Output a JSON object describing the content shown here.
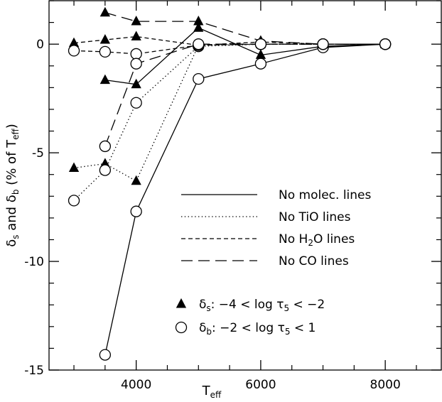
{
  "chart_data": {
    "type": "line",
    "xlabel": "T",
    "xlabel_sub": "eff",
    "ylabel_parts": [
      "δ",
      "s",
      " and δ",
      "b",
      " (% of T",
      "eff",
      ")"
    ],
    "xlim": [
      2600,
      8900
    ],
    "ylim": [
      -15,
      2
    ],
    "x_ticks": [
      4000,
      6000,
      8000
    ],
    "x_tick_labels": [
      "4000",
      "6000",
      "8000"
    ],
    "y_ticks": [
      0,
      -5,
      -10,
      -15
    ],
    "y_tick_labels": [
      "0",
      "-5",
      "-10",
      "-15"
    ],
    "x_minor_step": 500,
    "y_minor_step": 1,
    "grid": false,
    "legend_placement": "lower-right",
    "line_styles": [
      {
        "name": "No molec. lines",
        "dash": "solid"
      },
      {
        "name": "No TiO lines",
        "dash": "dotted"
      },
      {
        "name": "No H2O lines",
        "dash": "short-dashed"
      },
      {
        "name": "No CO lines",
        "dash": "long-dashed"
      }
    ],
    "line_legend_labels": [
      {
        "text": "No molec. lines",
        "sub": "",
        "tail": ""
      },
      {
        "text": "No TiO lines",
        "sub": "",
        "tail": ""
      },
      {
        "text": "No H",
        "sub": "2",
        "tail": "O lines"
      },
      {
        "text": "No CO lines",
        "sub": "",
        "tail": ""
      }
    ],
    "marker_legend": [
      {
        "marker": "filled-triangle",
        "sym": "δ",
        "sub": "s",
        "rest": ": −4 < log τ",
        "sub2": "5",
        "rest2": " < −2"
      },
      {
        "marker": "open-circle",
        "sym": "δ",
        "sub": "b",
        "rest": ": −2 < log τ",
        "sub2": "5",
        "rest2": " < 1"
      }
    ],
    "series": [
      {
        "line": "solid",
        "marker": "triangle",
        "x": [
          3500,
          4000,
          5000,
          6000,
          7000,
          8000
        ],
        "y": [
          -1.65,
          -1.85,
          0.75,
          -0.5,
          -0.1,
          0
        ]
      },
      {
        "line": "solid",
        "marker": "circle",
        "x": [
          3500,
          4000,
          5000,
          6000,
          7000,
          8000
        ],
        "y": [
          -14.3,
          -7.7,
          -1.6,
          -0.9,
          -0.15,
          0
        ]
      },
      {
        "line": "dotted",
        "marker": "triangle",
        "x": [
          3000,
          3500,
          4000,
          5000,
          6000,
          7000,
          8000
        ],
        "y": [
          -5.7,
          -5.5,
          -6.3,
          -0.05,
          0,
          0,
          0
        ]
      },
      {
        "line": "dotted",
        "marker": "circle",
        "x": [
          3000,
          3500,
          4000,
          5000,
          6000,
          7000,
          8000
        ],
        "y": [
          -7.2,
          -5.8,
          -2.7,
          -0.1,
          0,
          0,
          0
        ]
      },
      {
        "line": "short-dashed",
        "marker": "triangle",
        "x": [
          3000,
          3500,
          4000,
          5000,
          6000,
          7000,
          8000
        ],
        "y": [
          0.05,
          0.2,
          0.35,
          -0.05,
          0.1,
          0,
          0
        ]
      },
      {
        "line": "short-dashed",
        "marker": "circle",
        "x": [
          3000,
          3500,
          4000,
          5000,
          6000,
          7000,
          8000
        ],
        "y": [
          -0.3,
          -0.35,
          -0.45,
          -0.05,
          0,
          0,
          0
        ]
      },
      {
        "line": "long-dashed",
        "marker": "triangle",
        "x": [
          3500,
          4000,
          5000,
          6000,
          7000,
          8000
        ],
        "y": [
          1.45,
          1.05,
          1.05,
          0.15,
          0,
          0
        ]
      },
      {
        "line": "long-dashed",
        "marker": "circle",
        "x": [
          3500,
          4000,
          5000,
          6000,
          7000,
          8000
        ],
        "y": [
          -4.7,
          -0.9,
          0,
          0,
          0,
          0
        ]
      }
    ]
  }
}
